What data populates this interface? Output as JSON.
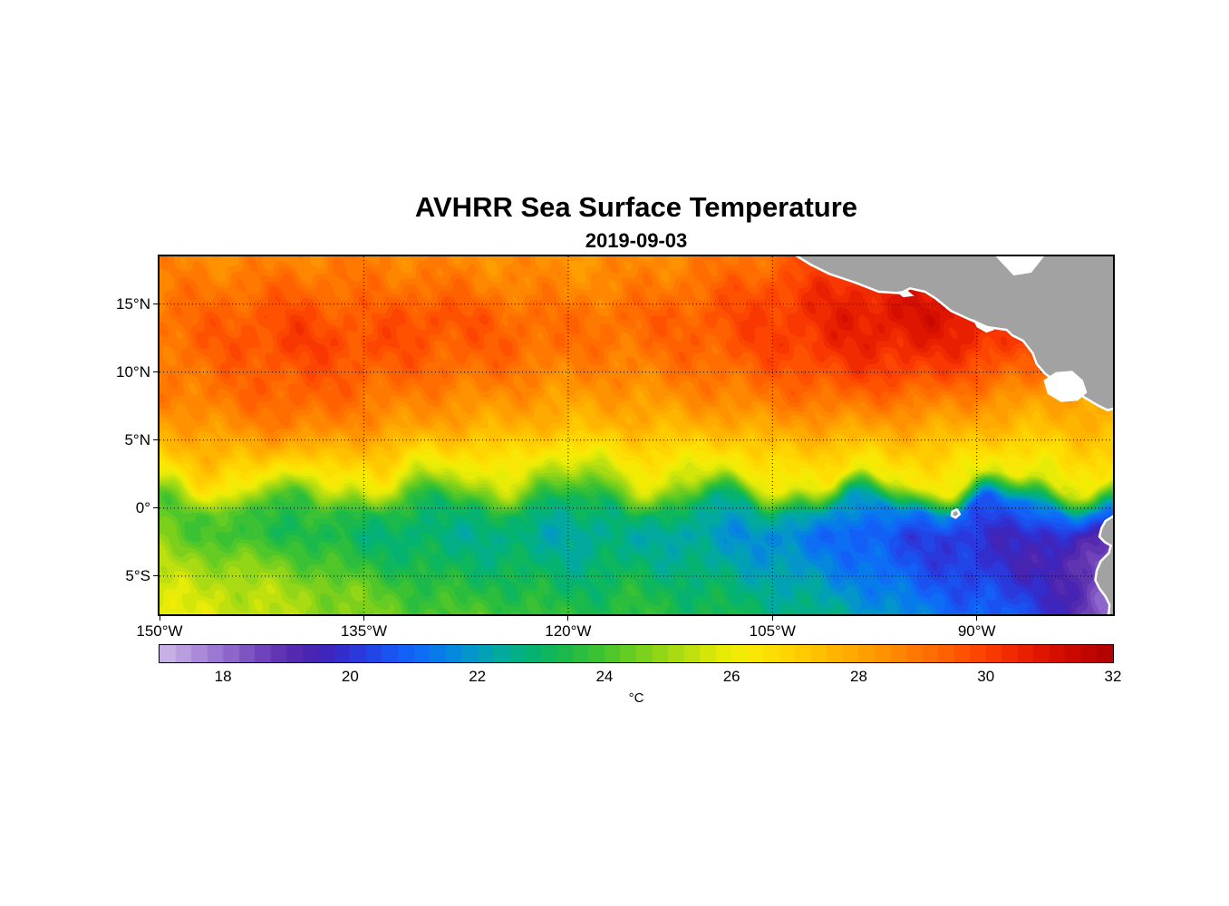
{
  "chart_data": {
    "type": "heatmap",
    "title": "AVHRR Sea Surface Temperature",
    "subtitle": "2019-09-03",
    "projection": "lon-lat",
    "lon_range": [
      -150,
      -80
    ],
    "lat_range": [
      -7.8,
      18.5
    ],
    "grid_style": "dotted",
    "x_ticks": [
      {
        "value": -150,
        "label": "150°W"
      },
      {
        "value": -135,
        "label": "135°W"
      },
      {
        "value": -120,
        "label": "120°W"
      },
      {
        "value": -105,
        "label": "105°W"
      },
      {
        "value": -90,
        "label": "90°W"
      }
    ],
    "y_ticks": [
      {
        "value": 15,
        "label": "15°N"
      },
      {
        "value": 10,
        "label": "10°N"
      },
      {
        "value": 5,
        "label": "5°N"
      },
      {
        "value": 0,
        "label": "0°"
      },
      {
        "value": -5,
        "label": "5°S"
      }
    ],
    "grid": {
      "units": "°C",
      "lons": [
        -150,
        -145,
        -140,
        -135,
        -130,
        -125,
        -120,
        -115,
        -110,
        -105,
        -100,
        -95,
        -90,
        -85,
        -80
      ],
      "lats": [
        18,
        16,
        14,
        12,
        10,
        8,
        6,
        4,
        2,
        0,
        -2,
        -4,
        -6,
        -8
      ],
      "sst": [
        [
          28.6,
          28.6,
          28.7,
          28.8,
          28.6,
          28.5,
          28.4,
          28.5,
          28.8,
          29.2,
          30.0,
          30.4,
          30.2,
          29.8,
          29.5
        ],
        [
          28.8,
          29.0,
          29.3,
          29.0,
          29.2,
          28.8,
          28.6,
          28.8,
          29.2,
          29.8,
          30.4,
          30.8,
          30.6,
          30.0,
          29.6
        ],
        [
          29.0,
          29.4,
          29.8,
          29.4,
          29.8,
          29.3,
          29.0,
          29.2,
          29.5,
          30.0,
          30.6,
          31.0,
          30.8,
          30.0,
          29.4
        ],
        [
          29.0,
          29.5,
          30.0,
          29.8,
          29.5,
          29.4,
          29.0,
          29.0,
          29.4,
          29.9,
          30.4,
          30.6,
          30.4,
          29.6,
          29.0
        ],
        [
          28.8,
          29.2,
          29.6,
          29.4,
          29.2,
          29.0,
          28.6,
          28.7,
          29.0,
          29.4,
          29.9,
          30.0,
          29.6,
          29.0,
          28.6
        ],
        [
          28.6,
          29.0,
          29.4,
          29.0,
          28.6,
          28.4,
          28.1,
          28.2,
          28.5,
          28.9,
          29.1,
          29.0,
          28.6,
          28.1,
          27.9
        ],
        [
          28.0,
          28.4,
          28.8,
          28.4,
          28.0,
          27.7,
          27.5,
          27.6,
          27.7,
          28.0,
          28.1,
          28.0,
          27.7,
          27.5,
          27.6
        ],
        [
          27.2,
          27.5,
          27.6,
          27.2,
          26.8,
          26.6,
          26.3,
          26.5,
          26.6,
          26.9,
          27.0,
          27.0,
          26.7,
          26.6,
          26.9
        ],
        [
          26.2,
          26.2,
          26.1,
          25.8,
          25.6,
          25.2,
          24.8,
          25.4,
          25.5,
          25.9,
          26.1,
          26.0,
          25.7,
          25.7,
          26.0
        ],
        [
          24.4,
          24.0,
          23.8,
          23.5,
          23.4,
          23.1,
          23.0,
          23.2,
          22.9,
          22.6,
          22.2,
          21.6,
          21.0,
          21.4,
          21.8
        ],
        [
          24.6,
          23.8,
          23.4,
          23.0,
          22.7,
          22.6,
          22.3,
          22.5,
          22.1,
          21.6,
          21.0,
          20.4,
          19.9,
          19.8,
          19.2
        ],
        [
          25.2,
          24.8,
          24.3,
          23.5,
          23.1,
          23.0,
          22.7,
          22.9,
          22.5,
          22.0,
          21.4,
          20.6,
          20.0,
          19.4,
          18.2
        ],
        [
          25.6,
          25.4,
          25.0,
          24.4,
          23.6,
          23.5,
          23.1,
          23.4,
          23.0,
          22.5,
          21.9,
          21.1,
          20.5,
          19.9,
          17.8
        ],
        [
          26.0,
          25.6,
          25.1,
          24.6,
          24.1,
          24.0,
          23.6,
          23.6,
          23.4,
          23.0,
          22.5,
          21.6,
          21.0,
          20.4,
          17.5
        ]
      ]
    },
    "colorbar": {
      "min": 17,
      "max": 32,
      "levels": 60,
      "label": "°C",
      "ticks": [
        {
          "value": 18,
          "label": "18"
        },
        {
          "value": 20,
          "label": "20"
        },
        {
          "value": 22,
          "label": "22"
        },
        {
          "value": 24,
          "label": "24"
        },
        {
          "value": 26,
          "label": "26"
        },
        {
          "value": 28,
          "label": "28"
        },
        {
          "value": 30,
          "label": "30"
        },
        {
          "value": 32,
          "label": "32"
        }
      ],
      "stops": [
        [
          17.0,
          "#cdb9e8"
        ],
        [
          17.5,
          "#b193dc"
        ],
        [
          18.0,
          "#946fce"
        ],
        [
          18.5,
          "#774bbe"
        ],
        [
          19.0,
          "#5a2cae"
        ],
        [
          19.5,
          "#4322b4"
        ],
        [
          20.0,
          "#2f31d5"
        ],
        [
          20.5,
          "#1e4cee"
        ],
        [
          21.0,
          "#0f66fa"
        ],
        [
          21.5,
          "#0682e6"
        ],
        [
          22.0,
          "#039cc0"
        ],
        [
          22.5,
          "#00ad92"
        ],
        [
          23.0,
          "#08b465"
        ],
        [
          23.5,
          "#21bb44"
        ],
        [
          24.0,
          "#44c42e"
        ],
        [
          24.5,
          "#70ce1f"
        ],
        [
          25.0,
          "#9ed815"
        ],
        [
          25.5,
          "#c9e30c"
        ],
        [
          26.0,
          "#efee05"
        ],
        [
          26.5,
          "#fce303"
        ],
        [
          27.0,
          "#ffd000"
        ],
        [
          27.5,
          "#ffbb00"
        ],
        [
          28.0,
          "#ffa400"
        ],
        [
          28.5,
          "#ff8c00"
        ],
        [
          29.0,
          "#ff7300"
        ],
        [
          29.5,
          "#ff5900"
        ],
        [
          30.0,
          "#fb3e00"
        ],
        [
          30.5,
          "#ee2500"
        ],
        [
          31.0,
          "#d91100"
        ],
        [
          31.5,
          "#c40600"
        ],
        [
          32.0,
          "#ae0000"
        ]
      ]
    },
    "land": {
      "fill": "#a2a2a2",
      "coast": "#ffffff",
      "polygons": [
        {
          "name": "central-america",
          "points": [
            [
              -103.5,
              18.7
            ],
            [
              -102.2,
              17.9
            ],
            [
              -100.8,
              17.2
            ],
            [
              -99.0,
              16.6
            ],
            [
              -97.2,
              15.9
            ],
            [
              -95.6,
              15.8
            ],
            [
              -94.9,
              16.15
            ],
            [
              -93.8,
              15.9
            ],
            [
              -93.0,
              15.4
            ],
            [
              -91.9,
              14.5
            ],
            [
              -90.6,
              13.9
            ],
            [
              -89.2,
              13.3
            ],
            [
              -87.8,
              13.1
            ],
            [
              -87.4,
              12.7
            ],
            [
              -86.6,
              12.3
            ],
            [
              -85.9,
              11.4
            ],
            [
              -85.6,
              10.6
            ],
            [
              -85.0,
              9.9
            ],
            [
              -84.2,
              9.3
            ],
            [
              -83.2,
              8.7
            ],
            [
              -82.2,
              8.2
            ],
            [
              -81.2,
              7.6
            ],
            [
              -80.4,
              7.2
            ],
            [
              -79.6,
              7.4
            ],
            [
              -79.0,
              8.0
            ],
            [
              -79.0,
              19.0
            ],
            [
              -103.5,
              19.0
            ]
          ]
        },
        {
          "name": "south-america",
          "points": [
            [
              -79.0,
              -0.2
            ],
            [
              -80.0,
              -0.6
            ],
            [
              -80.55,
              -0.95
            ],
            [
              -80.85,
              -1.5
            ],
            [
              -81.0,
              -2.1
            ],
            [
              -80.6,
              -2.5
            ],
            [
              -80.15,
              -2.75
            ],
            [
              -80.3,
              -3.3
            ],
            [
              -80.9,
              -3.9
            ],
            [
              -81.2,
              -4.6
            ],
            [
              -81.3,
              -5.3
            ],
            [
              -81.0,
              -5.9
            ],
            [
              -80.55,
              -6.5
            ],
            [
              -80.25,
              -7.1
            ],
            [
              -80.3,
              -7.7
            ],
            [
              -80.55,
              -8.3
            ],
            [
              -79.0,
              -8.3
            ]
          ]
        },
        {
          "name": "galapagos-island",
          "points": [
            [
              -91.8,
              -0.25
            ],
            [
              -91.45,
              -0.1
            ],
            [
              -91.25,
              -0.45
            ],
            [
              -91.55,
              -0.7
            ],
            [
              -91.85,
              -0.55
            ]
          ]
        }
      ],
      "clouds": [
        {
          "name": "cloud-caribbean-notch",
          "points": [
            [
              -88.8,
              18.7
            ],
            [
              -87.3,
              17.1
            ],
            [
              -86.0,
              17.3
            ],
            [
              -84.9,
              18.7
            ]
          ]
        },
        {
          "name": "cloud-panama",
          "points": [
            [
              -85.1,
              9.4
            ],
            [
              -84.2,
              10.0
            ],
            [
              -83.0,
              10.1
            ],
            [
              -82.2,
              9.4
            ],
            [
              -81.9,
              8.5
            ],
            [
              -82.6,
              7.9
            ],
            [
              -83.8,
              7.8
            ],
            [
              -84.8,
              8.4
            ]
          ]
        },
        {
          "name": "cloud-tehuantepec",
          "points": [
            [
              -95.9,
              15.9
            ],
            [
              -95.1,
              16.0
            ],
            [
              -94.6,
              15.6
            ],
            [
              -95.4,
              15.5
            ]
          ]
        },
        {
          "name": "cloud-el-salvador",
          "points": [
            [
              -90.3,
              13.9
            ],
            [
              -89.5,
              13.5
            ],
            [
              -88.7,
              13.1
            ],
            [
              -89.3,
              12.9
            ],
            [
              -90.0,
              13.3
            ]
          ]
        }
      ]
    }
  }
}
